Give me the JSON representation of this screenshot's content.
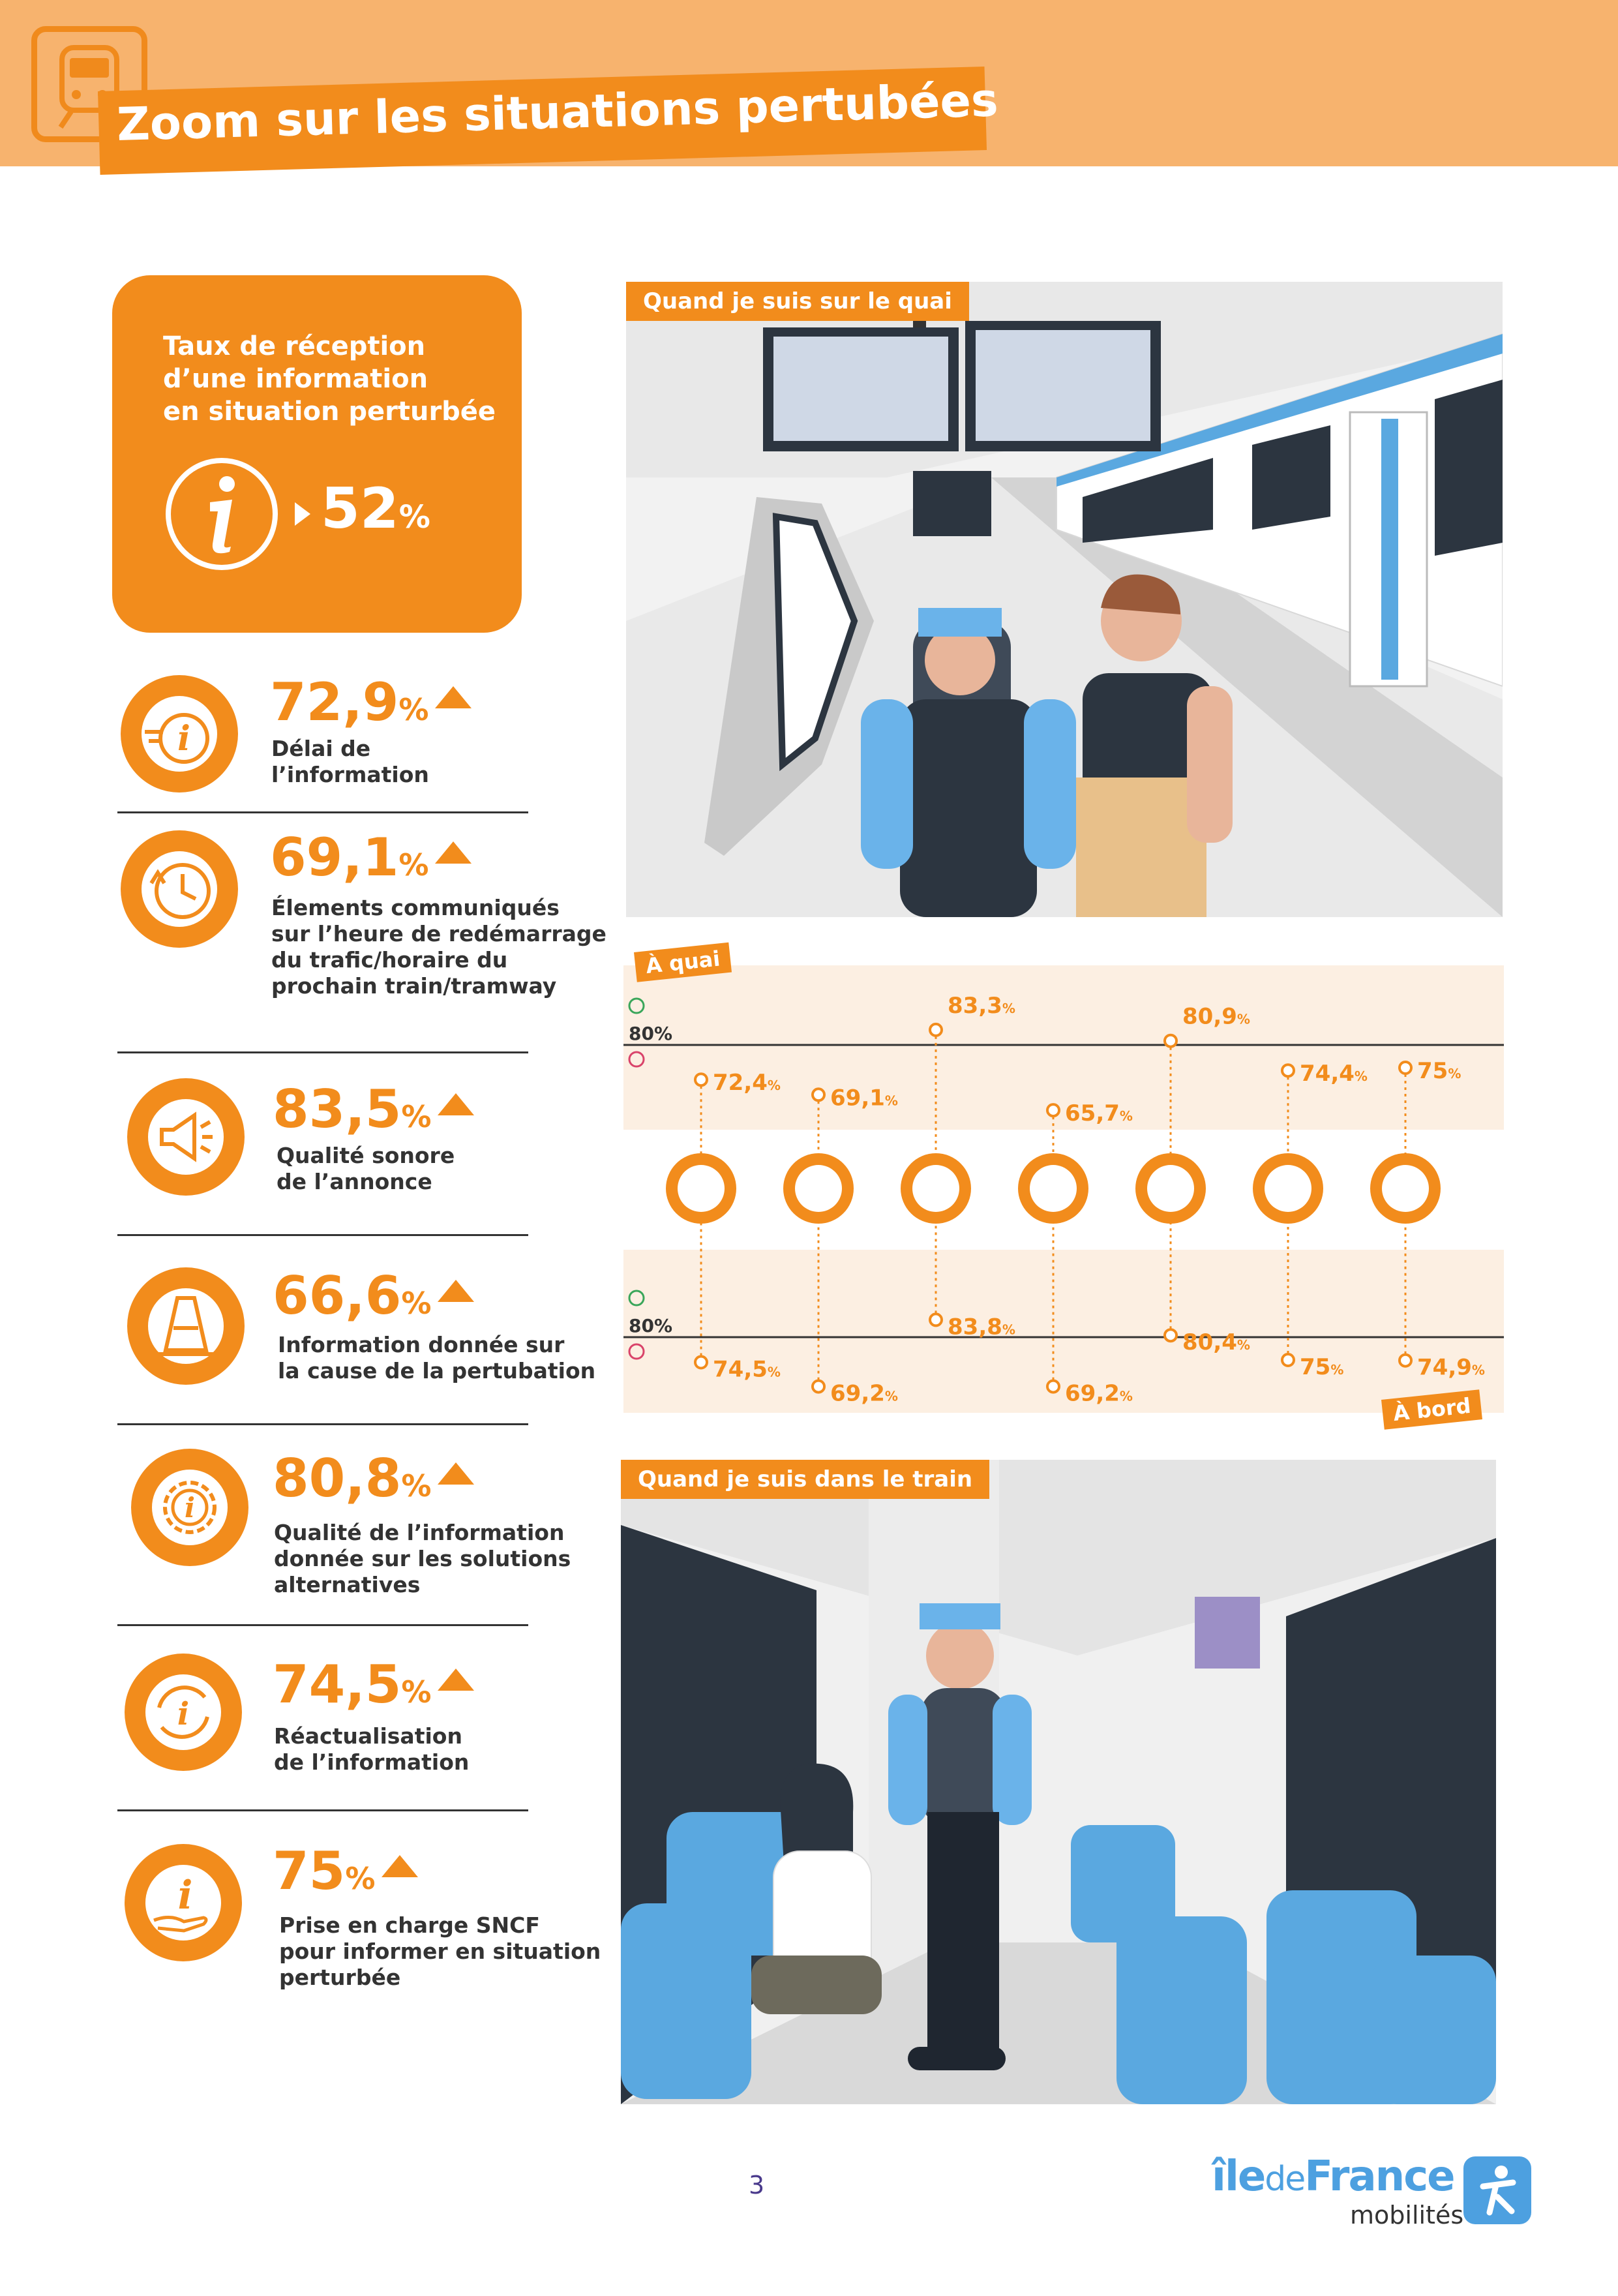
{
  "header": {
    "title": "Zoom sur les situations pertubées",
    "icon": "train-icon",
    "colors": {
      "band": "#f7b36e",
      "accent": "#f28c1c"
    }
  },
  "summary_card": {
    "title_lines": [
      "Taux de réception",
      "d’une information",
      "en situation perturbée"
    ],
    "value": "52",
    "unit": "%",
    "icon": "info-icon"
  },
  "metrics": [
    {
      "value": "72,9",
      "unit": "%",
      "trend": "up",
      "label_lines": [
        "Délai de",
        "l’information"
      ],
      "icon": "info-timer-icon"
    },
    {
      "value": "69,1",
      "unit": "%",
      "trend": "up",
      "label_lines": [
        "Élements communiqués",
        "sur l’heure de redémarrage",
        "du trafic/horaire du",
        "prochain train/tramway"
      ],
      "icon": "clock-icon"
    },
    {
      "value": "83,5",
      "unit": "%",
      "trend": "up",
      "label_lines": [
        "Qualité sonore",
        "de l’annonce"
      ],
      "icon": "megaphone-icon"
    },
    {
      "value": "66,6",
      "unit": "%",
      "trend": "up",
      "label_lines": [
        "Information donnée sur",
        "la cause de la pertubation"
      ],
      "icon": "traffic-cone-icon"
    },
    {
      "value": "80,8",
      "unit": "%",
      "trend": "up",
      "label_lines": [
        "Qualité de l’information",
        "donnée sur les solutions",
        "alternatives"
      ],
      "icon": "gear-info-icon"
    },
    {
      "value": "74,5",
      "unit": "%",
      "trend": "up",
      "label_lines": [
        "Réactualisation",
        "de l’information"
      ],
      "icon": "refresh-info-icon"
    },
    {
      "value": "75",
      "unit": "%",
      "trend": "up",
      "label_lines": [
        "Prise en charge SNCF",
        "pour informer en situation",
        "perturbée"
      ],
      "icon": "hand-info-icon"
    }
  ],
  "scenes": {
    "platform_tag": "Quand je suis sur le quai",
    "train_tag": "Quand je suis dans le train"
  },
  "chart_data": {
    "type": "scatter",
    "panels": [
      {
        "name": "À quai",
        "values": [
          72.4,
          69.1,
          83.3,
          65.7,
          80.9,
          74.4,
          75
        ],
        "labels": [
          "72,4",
          "69,1",
          "83,3",
          "65,7",
          "80,9",
          "74,4",
          "75"
        ]
      },
      {
        "name": "À bord",
        "values": [
          74.5,
          69.2,
          83.8,
          69.2,
          80.4,
          75,
          74.9
        ],
        "labels": [
          "74,5",
          "69,2",
          "83,8",
          "69,2",
          "80,4",
          "75",
          "74,9"
        ]
      }
    ],
    "threshold": 80,
    "threshold_label": "80%",
    "unit": "%",
    "categories_icons": [
      "info-timer-icon",
      "clock-icon",
      "megaphone-icon",
      "traffic-cone-icon",
      "gear-info-icon",
      "refresh-info-icon",
      "hand-info-icon"
    ]
  },
  "footer": {
    "page_number": "3",
    "brand_ile": "île",
    "brand_de": "de",
    "brand_france": "France",
    "brand_sub": "mobilités"
  }
}
